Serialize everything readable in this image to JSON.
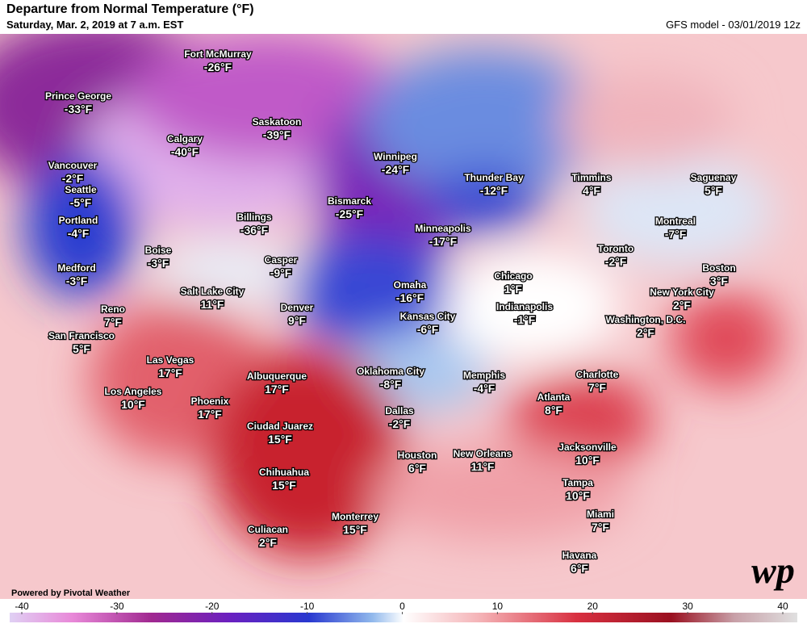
{
  "header": {
    "title": "Departure from Normal Temperature (°F)",
    "subtitle": "Saturday, Mar. 2, 2019 at 7 a.m. EST",
    "model": "GFS model - 03/01/2019 12z"
  },
  "cities": [
    {
      "name": "Fort McMurray",
      "label": "-26°F"
    },
    {
      "name": "Prince George",
      "label": "-33°F"
    },
    {
      "name": "Calgary",
      "label": "-40°F"
    },
    {
      "name": "Saskatoon",
      "label": "-39°F"
    },
    {
      "name": "Vancouver",
      "label": "-2°F"
    },
    {
      "name": "Seattle",
      "label": "-5°F"
    },
    {
      "name": "Portland",
      "label": "-4°F"
    },
    {
      "name": "Winnipeg",
      "label": "-24°F"
    },
    {
      "name": "Thunder Bay",
      "label": "-12°F"
    },
    {
      "name": "Timmins",
      "label": "4°F"
    },
    {
      "name": "Saguenay",
      "label": "5°F"
    },
    {
      "name": "Bismarck",
      "label": "-25°F"
    },
    {
      "name": "Billings",
      "label": "-36°F"
    },
    {
      "name": "Minneapolis",
      "label": "-17°F"
    },
    {
      "name": "Montreal",
      "label": "-7°F"
    },
    {
      "name": "Boise",
      "label": "-3°F"
    },
    {
      "name": "Casper",
      "label": "-9°F"
    },
    {
      "name": "Medford",
      "label": "-3°F"
    },
    {
      "name": "Toronto",
      "label": "-2°F"
    },
    {
      "name": "Boston",
      "label": "3°F"
    },
    {
      "name": "Chicago",
      "label": "1°F"
    },
    {
      "name": "Omaha",
      "label": "-16°F"
    },
    {
      "name": "New York City",
      "label": "2°F"
    },
    {
      "name": "Salt Lake City",
      "label": "11°F"
    },
    {
      "name": "Reno",
      "label": "7°F"
    },
    {
      "name": "Denver",
      "label": "9°F"
    },
    {
      "name": "Indianapolis",
      "label": "-1°F"
    },
    {
      "name": "Kansas City",
      "label": "-6°F"
    },
    {
      "name": "Washington, D.C.",
      "label": "2°F"
    },
    {
      "name": "San Francisco",
      "label": "5°F"
    },
    {
      "name": "Las Vegas",
      "label": "17°F"
    },
    {
      "name": "Oklahoma City",
      "label": "-8°F"
    },
    {
      "name": "Memphis",
      "label": "-4°F"
    },
    {
      "name": "Charlotte",
      "label": "7°F"
    },
    {
      "name": "Albuquerque",
      "label": "17°F"
    },
    {
      "name": "Los Angeles",
      "label": "10°F"
    },
    {
      "name": "Atlanta",
      "label": "8°F"
    },
    {
      "name": "Phoenix",
      "label": "17°F"
    },
    {
      "name": "Dallas",
      "label": "-2°F"
    },
    {
      "name": "Ciudad Juarez",
      "label": "15°F"
    },
    {
      "name": "Jacksonville",
      "label": "10°F"
    },
    {
      "name": "New Orleans",
      "label": "11°F"
    },
    {
      "name": "Houston",
      "label": "6°F"
    },
    {
      "name": "Chihuahua",
      "label": "15°F"
    },
    {
      "name": "Tampa",
      "label": "10°F"
    },
    {
      "name": "Monterrey",
      "label": "15°F"
    },
    {
      "name": "Miami",
      "label": "7°F"
    },
    {
      "name": "Culiacan",
      "label": "2°F"
    },
    {
      "name": "Havana",
      "label": "6°F"
    }
  ],
  "colorbar": {
    "min": -40,
    "max": 40,
    "ticks": [
      -40,
      -30,
      -20,
      -10,
      0,
      10,
      20,
      30,
      40
    ]
  },
  "footer": {
    "credit": "Powered by Pivotal Weather",
    "logo": "wp"
  }
}
